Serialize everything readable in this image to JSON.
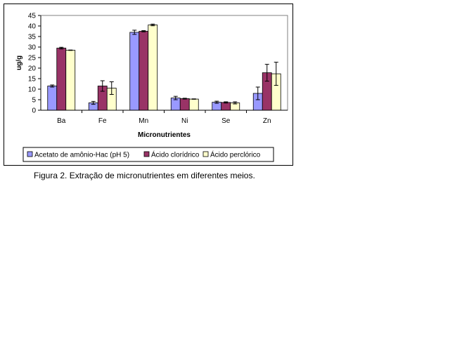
{
  "caption": "Figura 2. Extração de micronutrientes em diferentes meios.",
  "chart_data": {
    "type": "bar",
    "title": "",
    "xlabel": "Micronutrientes",
    "ylabel": "ug/g",
    "ylim": [
      0,
      45
    ],
    "yticks": [
      0,
      5,
      10,
      15,
      20,
      25,
      30,
      35,
      40,
      45
    ],
    "categories": [
      "Ba",
      "Fe",
      "Mn",
      "Ni",
      "Se",
      "Zn"
    ],
    "grid": false,
    "legend_position": "bottom",
    "series": [
      {
        "name": "Acetato de amônio-Hac (pH 5)",
        "color": "#9999FF",
        "values": [
          11.5,
          3.5,
          37.0,
          5.8,
          3.8,
          8.0
        ],
        "errors": [
          0.5,
          0.7,
          1.0,
          0.8,
          0.5,
          3.0
        ]
      },
      {
        "name": "Ácido clorídrico",
        "color": "#993366",
        "values": [
          29.5,
          11.5,
          37.5,
          5.5,
          3.7,
          17.8
        ],
        "errors": [
          0.4,
          2.5,
          0.3,
          0.2,
          0.3,
          4.0
        ]
      },
      {
        "name": "Ácido perclórico",
        "color": "#FFFFCC",
        "values": [
          28.5,
          10.5,
          40.5,
          5.3,
          3.5,
          17.3
        ],
        "errors": [
          0.1,
          3.0,
          0.4,
          0.1,
          0.5,
          5.5
        ]
      }
    ]
  }
}
